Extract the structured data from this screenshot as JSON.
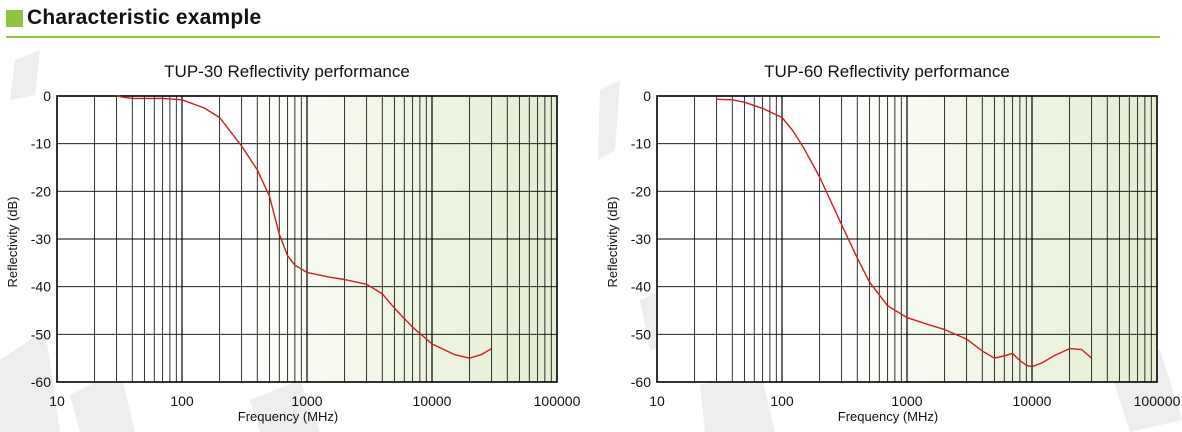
{
  "section": {
    "title": "Characteristic example",
    "accent_color": "#8cc63f"
  },
  "chart_data": [
    {
      "type": "line",
      "title": "TUP-30 Reflectivity performance",
      "xlabel": "Frequency (MHz)",
      "ylabel": "Reflectivity (dB)",
      "x_scale": "log",
      "xlim": [
        10,
        100000
      ],
      "ylim": [
        -60,
        0
      ],
      "x_ticks": [
        "10",
        "100",
        "1000",
        "10000",
        "100000"
      ],
      "y_ticks": [
        "0",
        "-10",
        "-20",
        "-30",
        "-40",
        "-50",
        "-60"
      ],
      "grid": true,
      "line_color": "#cc1f1f",
      "series": [
        {
          "x": [
            30,
            35,
            40,
            50,
            70,
            100,
            150,
            200,
            300,
            400,
            500,
            600,
            700,
            800,
            1000,
            1500,
            2000,
            3000,
            4000,
            5000,
            7000,
            10000,
            15000,
            20000,
            25000,
            30000
          ],
          "y": [
            0,
            -0.3,
            -0.5,
            -0.5,
            -0.5,
            -0.8,
            -2.5,
            -4.5,
            -10.5,
            -15.5,
            -21,
            -29,
            -33.5,
            -35.5,
            -37,
            -38,
            -38.5,
            -39.5,
            -41.5,
            -44.5,
            -48.5,
            -52,
            -54.2,
            -55,
            -54.2,
            -53
          ]
        }
      ]
    },
    {
      "type": "line",
      "title": "TUP-60 Reflectivity performance",
      "xlabel": "Frequency (MHz)",
      "ylabel": "Reflectivity (dB)",
      "x_scale": "log",
      "xlim": [
        10,
        100000
      ],
      "ylim": [
        -60,
        0
      ],
      "x_ticks": [
        "10",
        "100",
        "1000",
        "10000",
        "100000"
      ],
      "y_ticks": [
        "0",
        "-10",
        "-20",
        "-30",
        "-40",
        "-50",
        "-60"
      ],
      "grid": true,
      "line_color": "#cc1f1f",
      "series": [
        {
          "x": [
            30,
            40,
            50,
            70,
            100,
            120,
            150,
            200,
            300,
            400,
            500,
            700,
            1000,
            1500,
            2000,
            3000,
            4000,
            5000,
            6000,
            7000,
            8000,
            9000,
            10000,
            12000,
            15000,
            20000,
            25000,
            30000
          ],
          "y": [
            -0.7,
            -0.8,
            -1.3,
            -2.6,
            -4.5,
            -7,
            -11,
            -17,
            -27,
            -34,
            -39,
            -44,
            -46.5,
            -48,
            -49,
            -51,
            -53.5,
            -55,
            -54.5,
            -54,
            -55.5,
            -56.5,
            -56.8,
            -56,
            -54.5,
            -53,
            -53.2,
            -55
          ]
        }
      ]
    }
  ]
}
